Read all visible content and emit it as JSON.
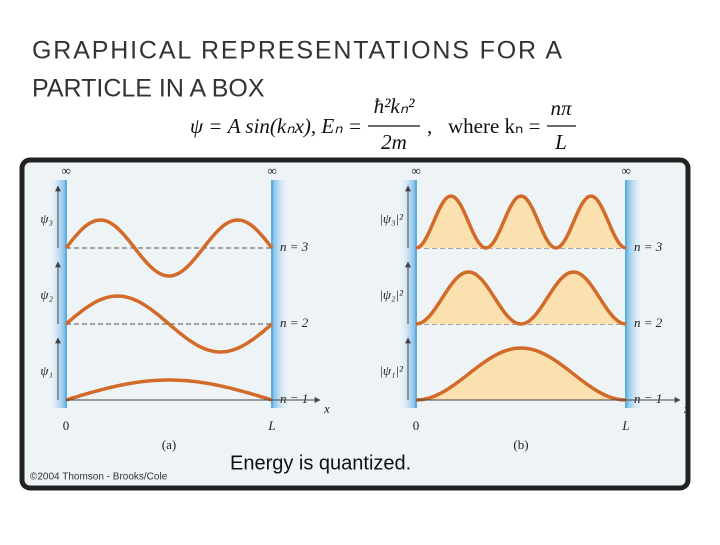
{
  "title": [
    "GRAPHICAL REPRESENTATIONS FOR A",
    "PARTICLE IN A BOX"
  ],
  "equation": {
    "lhs": "ψ = A sin(kₙx), Eₙ =",
    "numerator": "ħ²kₙ²",
    "denominator": "2m",
    "comma": ",",
    "where": "where kₙ =",
    "numerator2": "nπ",
    "denominator2": "L"
  },
  "figure": {
    "panels": [
      {
        "infinity_left": "∞",
        "infinity_right": "∞",
        "y_labels": [
          "ψ₃",
          "ψ₂",
          "ψ₁"
        ],
        "levels": [
          "n = 3",
          "n = 2",
          "n = 1"
        ],
        "origin": "0",
        "end": "L",
        "axis": "x",
        "label": "(a)"
      },
      {
        "infinity_left": "∞",
        "infinity_right": "∞",
        "y_labels": [
          "|ψ₃|²",
          "|ψ₂|²",
          "|ψ₁|²"
        ],
        "levels": [
          "n = 3",
          "n = 2",
          "n = 1"
        ],
        "origin": "0",
        "end": "L",
        "axis": "x",
        "label": "(b)"
      }
    ],
    "caption": "Energy is quantized.",
    "credit": "©2004 Thomson - Brooks/Cole"
  }
}
